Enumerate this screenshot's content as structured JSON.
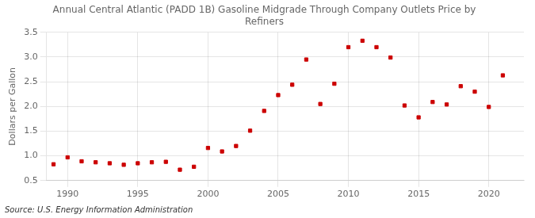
{
  "chart_data": {
    "type": "scatter",
    "title": "Annual Central Atlantic (PADD 1B) Gasoline Midgrade Through Company Outlets Price by\nRefiners",
    "ylabel": "Dollars per Gallon",
    "annotation": "Source: U.S. Energy Information Administration",
    "x": [
      1989,
      1990,
      1991,
      1992,
      1993,
      1994,
      1995,
      1996,
      1997,
      1998,
      1999,
      2000,
      2001,
      2002,
      2003,
      2004,
      2005,
      2006,
      2007,
      2008,
      2009,
      2010,
      2011,
      2012,
      2013,
      2014,
      2015,
      2016,
      2017,
      2018,
      2019,
      2020,
      2021
    ],
    "values": [
      0.83,
      0.97,
      0.89,
      0.87,
      0.85,
      0.82,
      0.85,
      0.87,
      0.88,
      0.72,
      0.78,
      1.16,
      1.09,
      1.2,
      1.51,
      1.91,
      2.23,
      2.44,
      2.95,
      2.05,
      2.46,
      3.2,
      3.33,
      3.2,
      2.99,
      2.02,
      1.78,
      2.09,
      2.04,
      2.41,
      2.3,
      1.99,
      2.63
    ],
    "color": "#cc0000",
    "marker": "square",
    "xlim": [
      1988.5,
      2022.5
    ],
    "xticks": [
      1990,
      1995,
      2000,
      2005,
      2010,
      2015,
      2020
    ],
    "ylim": [
      0.5,
      3.5
    ],
    "yticks": [
      0.5,
      {
        "value": 1.0,
        "label": "1.0"
      },
      1.5,
      {
        "value": 2.0,
        "label": "2.0"
      },
      2.5,
      {
        "value": 3.0,
        "label": "3.0"
      },
      3.5
    ],
    "grid": true
  }
}
